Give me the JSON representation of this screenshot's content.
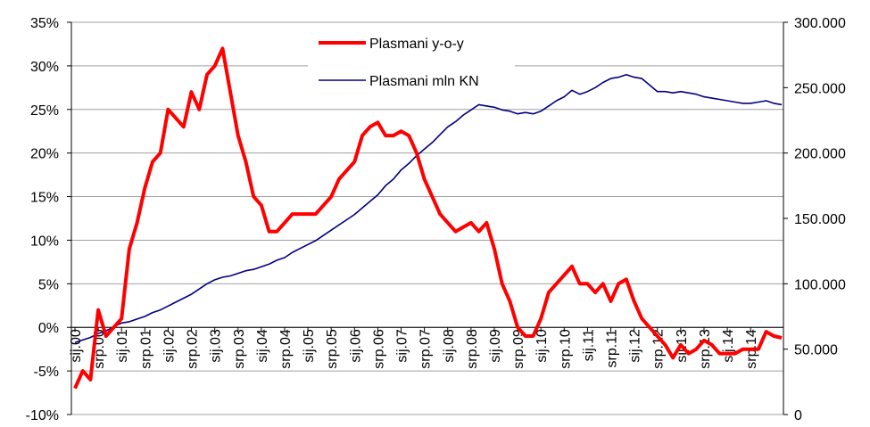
{
  "chart_data": {
    "type": "line",
    "categories": [
      "sij.00",
      null,
      null,
      "srp.00",
      null,
      null,
      "sij.01",
      null,
      null,
      "srp.01",
      null,
      null,
      "sij.02",
      null,
      null,
      "srp.02",
      null,
      null,
      "sij.03",
      null,
      null,
      "srp.03",
      null,
      null,
      "sij.04",
      null,
      null,
      "srp.04",
      null,
      null,
      "sij.05",
      null,
      null,
      "srp.05",
      null,
      null,
      "sij.06",
      null,
      null,
      "srp.06",
      null,
      null,
      "sij.07",
      null,
      null,
      "srp.07",
      null,
      null,
      "sij.08",
      null,
      null,
      "srp.08",
      null,
      null,
      "sij.09",
      null,
      null,
      "srp.09",
      null,
      null,
      "sij.10",
      null,
      null,
      "srp.10",
      null,
      null,
      "sij.11",
      null,
      null,
      "srp.11",
      null,
      null,
      "sij.12",
      null,
      null,
      "srp.12",
      null,
      null,
      "sij.13",
      null,
      null,
      "srp.13",
      null,
      null,
      "sij.14",
      null,
      null,
      "srp.14",
      null,
      null,
      null,
      null
    ],
    "series": [
      {
        "name": "Plasmani y-o-y",
        "color": "#ff0000",
        "values": [
          -7,
          -5,
          -6,
          2,
          -1,
          0,
          1,
          9,
          12,
          16,
          19,
          20,
          25,
          24,
          23,
          27,
          25,
          29,
          30,
          32,
          27,
          22,
          19,
          15,
          14,
          11,
          11,
          12,
          13,
          13,
          13,
          13,
          14,
          15,
          17,
          18,
          19,
          22,
          23,
          23.5,
          22,
          22,
          22.5,
          22,
          20,
          17,
          15,
          13,
          12,
          11,
          11.5,
          12,
          11,
          12,
          9,
          5,
          3,
          0,
          -1,
          -1,
          1,
          4,
          5,
          6,
          7,
          5,
          5,
          4,
          5,
          3,
          5,
          5.5,
          3,
          1,
          0,
          -1,
          -2,
          -3.5,
          -2,
          -3,
          -2.5,
          -1.5,
          -2,
          -3,
          -3,
          -3,
          -2.5,
          -2.5,
          -2.5,
          -0.5,
          -1,
          -1.2
        ]
      },
      {
        "name": "Plasmani mln KN",
        "color": "#000080",
        "axis": "y2",
        "values": [
          55000,
          57000,
          59000,
          62000,
          64000,
          67000,
          70000,
          71000,
          73000,
          75000,
          78000,
          80000,
          83000,
          86000,
          89000,
          92000,
          96000,
          100000,
          103000,
          105000,
          106000,
          108000,
          110000,
          111000,
          113000,
          115000,
          118000,
          120000,
          124000,
          127000,
          130000,
          133000,
          137000,
          141000,
          145000,
          149000,
          153000,
          158000,
          163000,
          168000,
          175000,
          180000,
          187000,
          192000,
          198000,
          203000,
          208000,
          214000,
          220000,
          224000,
          229000,
          233000,
          237000,
          236000,
          235000,
          233000,
          232000,
          230000,
          231000,
          230000,
          232000,
          236000,
          240000,
          243000,
          248000,
          245000,
          247000,
          250000,
          254000,
          257000,
          258000,
          260000,
          258000,
          257000,
          252000,
          247000,
          247000,
          246000,
          247000,
          246000,
          245000,
          243000,
          242000,
          241000,
          240000,
          239000,
          238000,
          238000,
          239000,
          240000,
          238000,
          237000
        ]
      }
    ],
    "ylim": [
      -10,
      35
    ],
    "yticks": [
      {
        "value": -10,
        "label": "-10%"
      },
      {
        "value": -5,
        "label": "-5%"
      },
      {
        "value": 0,
        "label": "0%"
      },
      {
        "value": 5,
        "label": "5%"
      },
      {
        "value": 10,
        "label": "10%"
      },
      {
        "value": 15,
        "label": "15%"
      },
      {
        "value": 20,
        "label": "20%"
      },
      {
        "value": 25,
        "label": "25%"
      },
      {
        "value": 30,
        "label": "30%"
      },
      {
        "value": 35,
        "label": "35%"
      }
    ],
    "y2lim": [
      0,
      300000
    ],
    "y2ticks": [
      0,
      {
        "value": 50000,
        "label": "50.000"
      },
      {
        "value": 100000,
        "label": "100.000"
      },
      {
        "value": 150000,
        "label": "150.000"
      },
      {
        "value": 200000,
        "label": "200.000"
      },
      {
        "value": 250000,
        "label": "250.000"
      },
      {
        "value": 300000,
        "label": "300.000"
      }
    ],
    "grid": true
  }
}
